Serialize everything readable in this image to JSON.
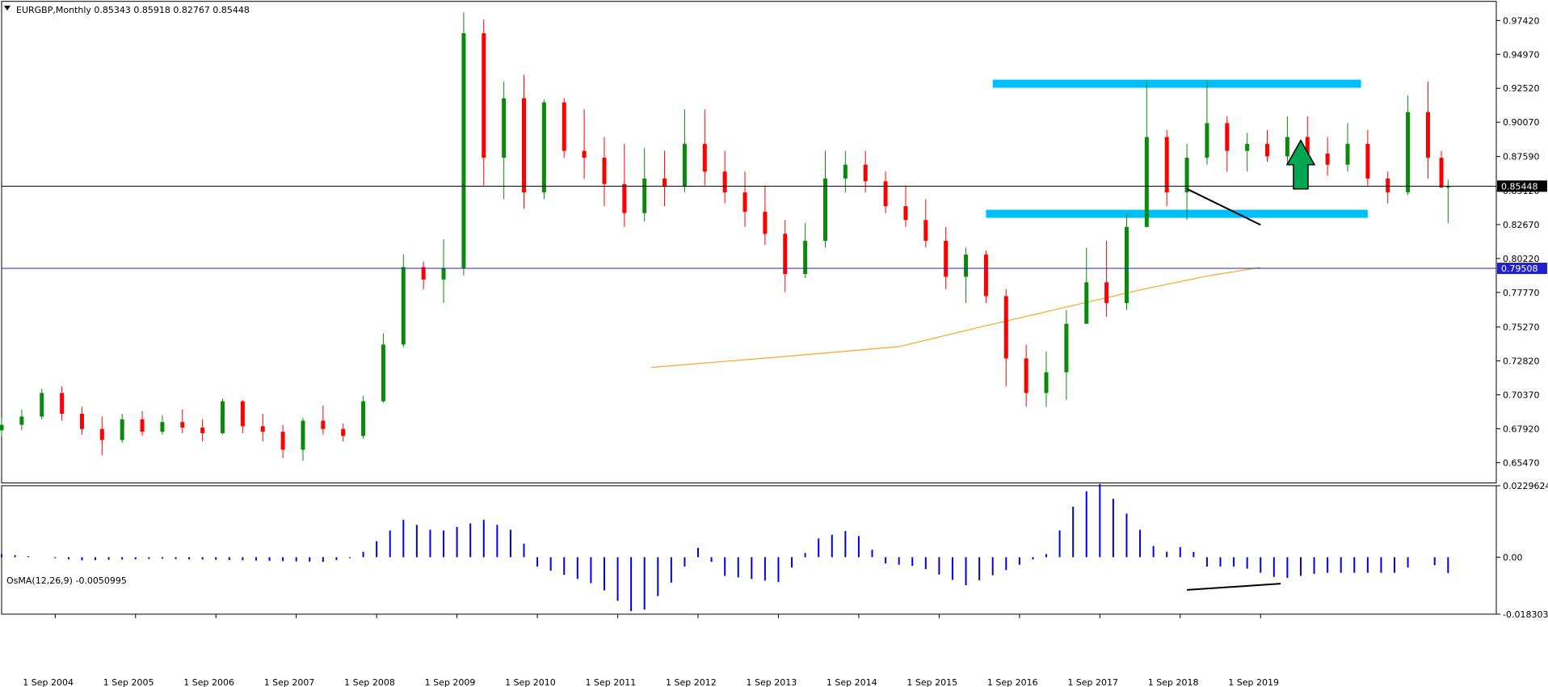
{
  "chart_data": [
    {
      "type": "candlestick",
      "title": "EURGBP,Monthly  0.85343 0.85918 0.82767 0.85448",
      "symbol": "EURGBP",
      "timeframe": "Monthly",
      "last_ohlc": {
        "open": 0.85343,
        "high": 0.85918,
        "low": 0.82767,
        "close": 0.85448
      },
      "ylim": [
        0.64,
        0.988
      ],
      "y_ticks": [
        "0.97420",
        "0.94970",
        "0.92520",
        "0.90070",
        "0.87590",
        "0.85120",
        "0.82670",
        "0.80220",
        "0.77770",
        "0.75270",
        "0.72820",
        "0.70370",
        "0.67920",
        "0.65470"
      ],
      "x_ticks": [
        "1 Sep 2004",
        "1 Sep 2005",
        "1 Sep 2006",
        "1 Sep 2007",
        "1 Sep 2008",
        "1 Sep 2009",
        "1 Sep 2010",
        "1 Sep 2011",
        "1 Sep 2012",
        "1 Sep 2013",
        "1 Sep 2014",
        "1 Sep 2015",
        "1 Sep 2016",
        "1 Sep 2017",
        "1 Sep 2018",
        "1 Sep 2019"
      ],
      "price_lines": [
        {
          "value": 0.85448,
          "label": "0.85448",
          "color": "#000000"
        },
        {
          "value": 0.79508,
          "label": "0.79508",
          "color": "#2222cc"
        }
      ],
      "zones": [
        {
          "date_from": "2016-05",
          "date_to": "2020-12",
          "price": 0.9285,
          "color": "#00bfff"
        },
        {
          "date_from": "2016-04",
          "date_to": "2021-01",
          "price": 0.8345,
          "color": "#00bfff"
        }
      ],
      "trendlines": [
        {
          "from": {
            "date": "2018-10",
            "price": 0.8525
          },
          "to": {
            "date": "2019-09",
            "price": 0.8265
          },
          "color": "#000000"
        }
      ],
      "arrow": {
        "date": "2020-03",
        "price_base": 0.8525,
        "price_tip": 0.8875,
        "color": "#00a651"
      },
      "moving_average": {
        "color": "#f5a623",
        "points": [
          [
            "2012-02",
            0.7235
          ],
          [
            "2013-09",
            0.731
          ],
          [
            "2015-03",
            0.7385
          ],
          [
            "2016-03",
            0.7525
          ],
          [
            "2017-03",
            0.766
          ],
          [
            "2018-03",
            0.7795
          ],
          [
            "2019-01",
            0.7895
          ],
          [
            "2019-09",
            0.7958
          ]
        ]
      },
      "candles": [
        [
          "2004-01",
          0.678,
          0.687,
          0.674,
          0.682
        ],
        [
          "2004-04",
          0.682,
          0.693,
          0.678,
          0.688
        ],
        [
          "2004-07",
          0.688,
          0.708,
          0.686,
          0.705
        ],
        [
          "2004-10",
          0.705,
          0.71,
          0.685,
          0.69
        ],
        [
          "2005-01",
          0.69,
          0.695,
          0.675,
          0.679
        ],
        [
          "2005-04",
          0.679,
          0.688,
          0.66,
          0.671
        ],
        [
          "2005-07",
          0.671,
          0.69,
          0.669,
          0.686
        ],
        [
          "2005-10",
          0.686,
          0.692,
          0.674,
          0.677
        ],
        [
          "2006-01",
          0.677,
          0.689,
          0.675,
          0.684
        ],
        [
          "2006-04",
          0.684,
          0.693,
          0.676,
          0.68
        ],
        [
          "2006-07",
          0.68,
          0.686,
          0.67,
          0.676
        ],
        [
          "2006-10",
          0.676,
          0.701,
          0.675,
          0.699
        ],
        [
          "2007-01",
          0.699,
          0.7,
          0.676,
          0.681
        ],
        [
          "2007-04",
          0.681,
          0.69,
          0.67,
          0.677
        ],
        [
          "2007-07",
          0.677,
          0.682,
          0.658,
          0.664
        ],
        [
          "2007-10",
          0.664,
          0.687,
          0.656,
          0.685
        ],
        [
          "2008-01",
          0.685,
          0.696,
          0.675,
          0.679
        ],
        [
          "2008-04",
          0.679,
          0.683,
          0.67,
          0.674
        ],
        [
          "2008-07",
          0.674,
          0.703,
          0.672,
          0.699
        ],
        [
          "2008-10",
          0.699,
          0.748,
          0.698,
          0.74
        ],
        [
          "2009-01",
          0.74,
          0.805,
          0.738,
          0.796
        ],
        [
          "2009-04",
          0.796,
          0.8,
          0.78,
          0.787
        ],
        [
          "2009-07",
          0.787,
          0.816,
          0.77,
          0.795
        ],
        [
          "2009-10",
          0.795,
          0.98,
          0.79,
          0.965
        ],
        [
          "2010-01",
          0.965,
          0.975,
          0.855,
          0.875
        ],
        [
          "2010-04",
          0.875,
          0.93,
          0.845,
          0.918
        ],
        [
          "2010-07",
          0.918,
          0.935,
          0.838,
          0.85
        ],
        [
          "2010-10",
          0.85,
          0.917,
          0.845,
          0.915
        ],
        [
          "2011-01",
          0.915,
          0.918,
          0.875,
          0.88
        ],
        [
          "2011-04",
          0.88,
          0.91,
          0.86,
          0.875
        ],
        [
          "2011-07",
          0.875,
          0.89,
          0.84,
          0.856
        ],
        [
          "2011-10",
          0.856,
          0.885,
          0.825,
          0.835
        ],
        [
          "2012-01",
          0.835,
          0.882,
          0.829,
          0.86
        ],
        [
          "2012-04",
          0.86,
          0.88,
          0.84,
          0.854
        ],
        [
          "2012-07",
          0.854,
          0.91,
          0.85,
          0.885
        ],
        [
          "2012-10",
          0.885,
          0.91,
          0.855,
          0.865
        ],
        [
          "2013-01",
          0.865,
          0.88,
          0.842,
          0.85
        ],
        [
          "2013-04",
          0.85,
          0.865,
          0.825,
          0.836
        ],
        [
          "2013-07",
          0.836,
          0.855,
          0.812,
          0.82
        ],
        [
          "2013-10",
          0.82,
          0.83,
          0.778,
          0.791
        ],
        [
          "2014-01",
          0.791,
          0.828,
          0.788,
          0.815
        ],
        [
          "2014-04",
          0.815,
          0.88,
          0.81,
          0.86
        ],
        [
          "2014-07",
          0.86,
          0.88,
          0.85,
          0.87
        ],
        [
          "2014-10",
          0.87,
          0.88,
          0.85,
          0.858
        ],
        [
          "2015-01",
          0.858,
          0.865,
          0.835,
          0.84
        ],
        [
          "2015-04",
          0.84,
          0.855,
          0.825,
          0.83
        ],
        [
          "2015-07",
          0.83,
          0.845,
          0.81,
          0.815
        ],
        [
          "2015-10",
          0.815,
          0.825,
          0.78,
          0.789
        ],
        [
          "2016-01",
          0.789,
          0.81,
          0.77,
          0.805
        ],
        [
          "2016-04",
          0.805,
          0.808,
          0.77,
          0.775
        ],
        [
          "2016-07",
          0.775,
          0.78,
          0.71,
          0.73
        ],
        [
          "2016-10",
          0.73,
          0.74,
          0.695,
          0.705
        ],
        [
          "2017-01",
          0.705,
          0.735,
          0.695,
          0.72
        ],
        [
          "2017-04",
          0.72,
          0.765,
          0.7,
          0.755
        ],
        [
          "2017-07",
          0.755,
          0.81,
          0.755,
          0.785
        ],
        [
          "2017-10",
          0.785,
          0.815,
          0.76,
          0.77
        ],
        [
          "2018-01",
          0.77,
          0.835,
          0.765,
          0.825
        ],
        [
          "2018-04",
          0.825,
          0.93,
          0.825,
          0.89
        ],
        [
          "2018-07",
          0.89,
          0.895,
          0.84,
          0.85
        ],
        [
          "2018-10",
          0.85,
          0.885,
          0.83,
          0.875
        ],
        [
          "2019-01",
          0.875,
          0.93,
          0.87,
          0.9
        ],
        [
          "2019-04",
          0.9,
          0.905,
          0.865,
          0.88
        ],
        [
          "2019-07",
          0.88,
          0.893,
          0.865,
          0.885
        ],
        [
          "2019-10",
          0.885,
          0.895,
          0.872,
          0.876
        ],
        [
          "2020-01",
          0.876,
          0.905,
          0.87,
          0.89
        ],
        [
          "2020-04",
          0.89,
          0.905,
          0.87,
          0.878
        ],
        [
          "2020-07",
          0.878,
          0.89,
          0.862,
          0.87
        ],
        [
          "2020-10",
          0.87,
          0.9,
          0.865,
          0.885
        ],
        [
          "2021-01",
          0.885,
          0.895,
          0.855,
          0.86
        ],
        [
          "2021-04",
          0.86,
          0.865,
          0.842,
          0.85
        ],
        [
          "2021-07",
          0.85,
          0.92,
          0.848,
          0.908
        ],
        [
          "2021-10",
          0.908,
          0.93,
          0.86,
          0.875
        ],
        [
          "2021-12",
          0.875,
          0.88,
          0.855,
          0.8534
        ],
        [
          "2022-01",
          0.8534,
          0.8592,
          0.8277,
          0.8545
        ]
      ]
    },
    {
      "type": "bar",
      "title": "OsMA(12,26,9) -0.0050995",
      "indicator": "OsMA(12,26,9)",
      "last_value": -0.0050995,
      "ylim": [
        -0.0183034,
        0.0229624
      ],
      "y_ticks": [
        "0.0229624",
        "0.00",
        "-0.0183034"
      ],
      "trendline": {
        "from": {
          "date": "2018-10",
          "value": -0.0105
        },
        "to": {
          "date": "2019-12",
          "value": -0.0085
        },
        "color": "#000000"
      },
      "series": [
        {
          "name": "OsMA",
          "color": "#0000ee",
          "points": [
            [
              "2004-01",
              0.001
            ],
            [
              "2005-01",
              -0.001
            ],
            [
              "2006-01",
              -0.0005
            ],
            [
              "2007-01",
              -0.001
            ],
            [
              "2008-01",
              -0.0015
            ],
            [
              "2008-06",
              0.0
            ],
            [
              "2009-01",
              0.012
            ],
            [
              "2009-06",
              0.008
            ],
            [
              "2010-01",
              0.012
            ],
            [
              "2010-06",
              0.008
            ],
            [
              "2010-09",
              -0.003
            ],
            [
              "2011-06",
              -0.009
            ],
            [
              "2011-12",
              -0.019
            ],
            [
              "2012-06",
              -0.006
            ],
            [
              "2012-09",
              0.003
            ],
            [
              "2013-01",
              -0.006
            ],
            [
              "2013-09",
              -0.008
            ],
            [
              "2014-03",
              0.006
            ],
            [
              "2014-08",
              0.009
            ],
            [
              "2015-01",
              -0.002
            ],
            [
              "2015-06",
              -0.003
            ],
            [
              "2016-01",
              -0.009
            ],
            [
              "2016-06",
              -0.005
            ],
            [
              "2017-01",
              0.001
            ],
            [
              "2017-06",
              0.02
            ],
            [
              "2017-09",
              0.0235
            ],
            [
              "2018-01",
              0.014
            ],
            [
              "2018-06",
              0.001
            ],
            [
              "2018-10",
              0.004
            ],
            [
              "2019-01",
              -0.003
            ],
            [
              "2019-06",
              -0.003
            ],
            [
              "2019-12",
              -0.007
            ],
            [
              "2020-06",
              -0.005
            ],
            [
              "2021-06",
              -0.005
            ],
            [
              "2021-09",
              0.0
            ],
            [
              "2022-01",
              -0.0051
            ]
          ]
        }
      ]
    }
  ],
  "price_tags": {
    "current": "0.85448",
    "blue": "0.79508",
    "hidden_tick": "0.85120"
  }
}
